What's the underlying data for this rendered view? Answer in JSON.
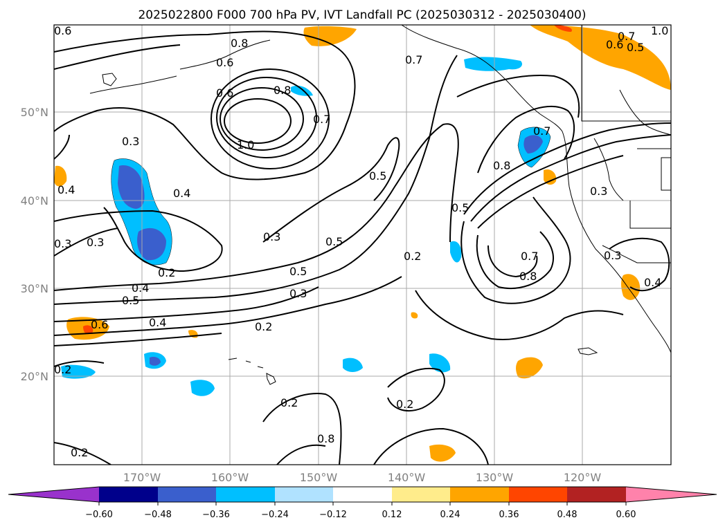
{
  "title": "2025022800 F000 700 hPa PV, IVT Landfall PC (2025030312 - 2025030400)",
  "lat_labels": [
    "50°N",
    "40°N",
    "30°N",
    "20°N"
  ],
  "lon_labels": [
    "170°W",
    "160°W",
    "150°W",
    "140°W",
    "130°W",
    "120°W"
  ],
  "contour_labels": [
    "0.6",
    "0.8",
    "0.7",
    "0.8",
    "0.6",
    "0.7",
    "1.0",
    "0.7",
    "0.6",
    "0.5",
    "0.5",
    "1.0",
    "0.3",
    "0.4",
    "0.4",
    "0.3",
    "0.2",
    "0.3",
    "0.5",
    "0.5",
    "0.3",
    "0.4",
    "0.5",
    "0.6",
    "0.4",
    "0.2",
    "0.2",
    "0.2",
    "0.3",
    "0.2",
    "0.2",
    "0.7",
    "0.8",
    "0.8",
    "0.5",
    "0.7",
    "0.8",
    "0.3",
    "0.3",
    "0.4",
    "0.2",
    "0.6"
  ],
  "colorbar": {
    "ticks": [
      "−0.60",
      "−0.48",
      "−0.36",
      "−0.24",
      "−0.12",
      "0.12",
      "0.24",
      "0.36",
      "0.48",
      "0.60"
    ],
    "colors": [
      "#9932cc",
      "#00008b",
      "#3a5fcd",
      "#00bfff",
      "#b0e2ff",
      "#ffffff",
      "#ffec8b",
      "#ffa500",
      "#ff4500",
      "#b22222",
      "#ff82ab"
    ]
  }
}
